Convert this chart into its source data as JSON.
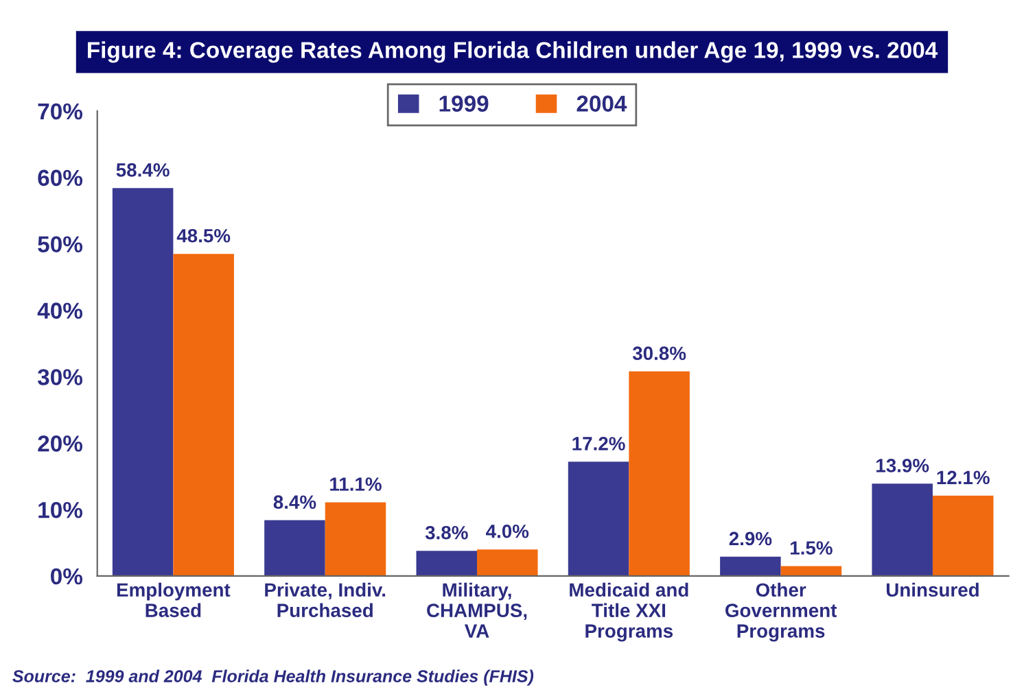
{
  "chart_data": {
    "type": "bar",
    "title": "Figure 4: Coverage Rates Among Florida Children under Age 19, 1999 vs. 2004",
    "categories": [
      "Employment\nBased",
      "Private, Indiv.\nPurchased",
      "Military,\nCHAMPUS,\nVA",
      "Medicaid and\nTitle XXI\nPrograms",
      "Other\nGovernment\nPrograms",
      "Uninsured"
    ],
    "series": [
      {
        "name": "1999",
        "color": "#3a3a92",
        "values": [
          58.4,
          8.4,
          3.8,
          17.2,
          2.9,
          13.9
        ],
        "value_labels": [
          "58.4%",
          "8.4%",
          "3.8%",
          "17.2%",
          "2.9%",
          "13.9%"
        ]
      },
      {
        "name": "2004",
        "color": "#f26a0f",
        "values": [
          48.5,
          11.1,
          4.0,
          30.8,
          1.5,
          12.1
        ],
        "value_labels": [
          "48.5%",
          "11.1%",
          "4.0%",
          "30.8%",
          "1.5%",
          "12.1%"
        ]
      }
    ],
    "ylim": [
      0,
      70
    ],
    "yticks": [
      {
        "value": 0,
        "label": "0%"
      },
      {
        "value": 10,
        "label": "10%"
      },
      {
        "value": 20,
        "label": "20%"
      },
      {
        "value": 30,
        "label": "30%"
      },
      {
        "value": 40,
        "label": "40%"
      },
      {
        "value": 50,
        "label": "50%"
      },
      {
        "value": 60,
        "label": "60%"
      },
      {
        "value": 70,
        "label": "70%"
      }
    ],
    "grid": false,
    "legend": "top",
    "annotations": [
      "Source:  1999 and 2004  Florida Health Insurance Studies (FHIS)"
    ]
  }
}
